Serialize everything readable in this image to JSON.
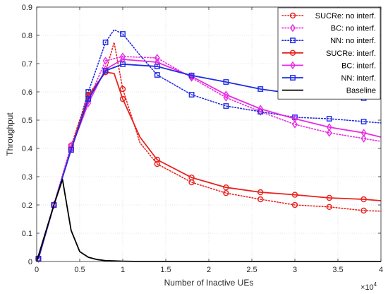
{
  "chart_data": {
    "type": "line",
    "xlabel": "Number of Inactive UEs",
    "ylabel": "Throughput",
    "x_exponent": "×10",
    "x_exponent_power": "4",
    "xlim": [
      0,
      4
    ],
    "ylim": [
      0,
      0.9
    ],
    "x_ticks": [
      0,
      0.5,
      1,
      1.5,
      2,
      2.5,
      3,
      3.5,
      4
    ],
    "x_tick_labels": [
      "0",
      "0.5",
      "1",
      "1.5",
      "2",
      "2.5",
      "3",
      "3.5",
      "4"
    ],
    "y_ticks": [
      0,
      0.1,
      0.2,
      0.3,
      0.4,
      0.5,
      0.6,
      0.7,
      0.8,
      0.9
    ],
    "y_tick_labels": [
      "0",
      "0.1",
      "0.2",
      "0.3",
      "0.4",
      "0.5",
      "0.6",
      "0.7",
      "0.8",
      "0.9"
    ],
    "grid": true,
    "legend_position": "top-right",
    "series": [
      {
        "name": "SUCRe: no interf.",
        "color": "#e8221e",
        "dash": "dotted",
        "marker": "circle",
        "x": [
          0.02,
          0.2,
          0.4,
          0.6,
          0.8,
          0.9,
          1.0,
          1.2,
          1.4,
          1.8,
          2.2,
          2.6,
          3.0,
          3.4,
          3.8,
          4.0
        ],
        "y": [
          0.01,
          0.2,
          0.41,
          0.59,
          0.67,
          0.775,
          0.61,
          0.42,
          0.345,
          0.28,
          0.242,
          0.22,
          0.2,
          0.193,
          0.18,
          0.178
        ],
        "marker_x": [
          0.02,
          0.2,
          0.4,
          0.6,
          0.8,
          1.0,
          1.4,
          1.8,
          2.2,
          2.6,
          3.0,
          3.4,
          3.8
        ]
      },
      {
        "name": "BC: no interf.",
        "color": "#e92be3",
        "dash": "dotted",
        "marker": "diamond",
        "x": [
          0.02,
          0.2,
          0.4,
          0.6,
          0.8,
          1.0,
          1.4,
          1.8,
          2.2,
          2.6,
          3.0,
          3.4,
          3.8,
          4.0
        ],
        "y": [
          0.01,
          0.2,
          0.41,
          0.57,
          0.71,
          0.725,
          0.72,
          0.65,
          0.58,
          0.53,
          0.485,
          0.455,
          0.435,
          0.425
        ],
        "marker_x": [
          0.02,
          0.2,
          0.4,
          0.6,
          0.8,
          1.0,
          1.4,
          1.8,
          2.2,
          2.6,
          3.0,
          3.4,
          3.8
        ]
      },
      {
        "name": "NN: no interf.",
        "color": "#1f2be4",
        "dash": "dotted",
        "marker": "square",
        "x": [
          0.02,
          0.2,
          0.4,
          0.6,
          0.8,
          0.9,
          1.0,
          1.2,
          1.4,
          1.8,
          2.2,
          2.6,
          3.0,
          3.4,
          3.8,
          4.0
        ],
        "y": [
          0.01,
          0.2,
          0.395,
          0.6,
          0.775,
          0.82,
          0.805,
          0.73,
          0.66,
          0.59,
          0.55,
          0.53,
          0.51,
          0.505,
          0.495,
          0.49
        ],
        "marker_x": [
          0.02,
          0.2,
          0.4,
          0.6,
          0.8,
          1.0,
          1.4,
          1.8,
          2.2,
          2.6,
          3.0,
          3.4,
          3.8
        ]
      },
      {
        "name": "SUCRe: interf.",
        "color": "#e8221e",
        "dash": "solid",
        "marker": "circle",
        "x": [
          0.02,
          0.2,
          0.4,
          0.6,
          0.8,
          0.9,
          1.0,
          1.2,
          1.4,
          1.8,
          2.2,
          2.6,
          3.0,
          3.4,
          3.8,
          4.0
        ],
        "y": [
          0.01,
          0.2,
          0.4,
          0.585,
          0.67,
          0.665,
          0.575,
          0.44,
          0.36,
          0.297,
          0.262,
          0.245,
          0.236,
          0.225,
          0.22,
          0.215
        ],
        "marker_x": [
          0.02,
          0.2,
          0.4,
          0.6,
          0.8,
          1.0,
          1.4,
          1.8,
          2.2,
          2.6,
          3.0,
          3.4,
          3.8
        ]
      },
      {
        "name": "BC: interf.",
        "color": "#e92be3",
        "dash": "solid",
        "marker": "diamond",
        "x": [
          0.02,
          0.2,
          0.4,
          0.6,
          0.8,
          1.0,
          1.4,
          1.8,
          2.2,
          2.6,
          3.0,
          3.4,
          3.8,
          4.0
        ],
        "y": [
          0.01,
          0.2,
          0.4,
          0.56,
          0.68,
          0.715,
          0.705,
          0.655,
          0.59,
          0.54,
          0.505,
          0.475,
          0.455,
          0.44
        ],
        "marker_x": [
          0.02,
          0.2,
          0.4,
          0.6,
          0.8,
          1.0,
          1.4,
          1.8,
          2.2,
          2.6,
          3.0,
          3.4,
          3.8
        ]
      },
      {
        "name": "NN: interf.",
        "color": "#1f2be4",
        "dash": "solid",
        "marker": "square",
        "x": [
          0.02,
          0.2,
          0.4,
          0.6,
          0.8,
          1.0,
          1.4,
          1.8,
          2.2,
          2.6,
          3.0,
          3.4,
          3.8,
          4.0
        ],
        "y": [
          0.01,
          0.2,
          0.395,
          0.575,
          0.675,
          0.698,
          0.69,
          0.658,
          0.635,
          0.61,
          0.593,
          0.586,
          0.578,
          0.576
        ],
        "marker_x": [
          0.02,
          0.2,
          0.4,
          0.6,
          0.8,
          1.0,
          1.4,
          1.8,
          2.2,
          2.6,
          3.0,
          3.4,
          3.8
        ]
      },
      {
        "name": "Baseline",
        "color": "#000000",
        "dash": "solid",
        "marker": "none",
        "x": [
          0.0,
          0.1,
          0.2,
          0.3,
          0.4,
          0.5,
          0.6,
          0.7,
          0.8,
          0.9,
          1.0,
          1.2,
          1.5,
          2.0,
          3.0,
          4.0
        ],
        "y": [
          0.0,
          0.1,
          0.2,
          0.29,
          0.11,
          0.035,
          0.015,
          0.007,
          0.003,
          0.002,
          0.001,
          0.0,
          0.0,
          0.0,
          0.0,
          0.0
        ],
        "marker_x": []
      }
    ]
  }
}
